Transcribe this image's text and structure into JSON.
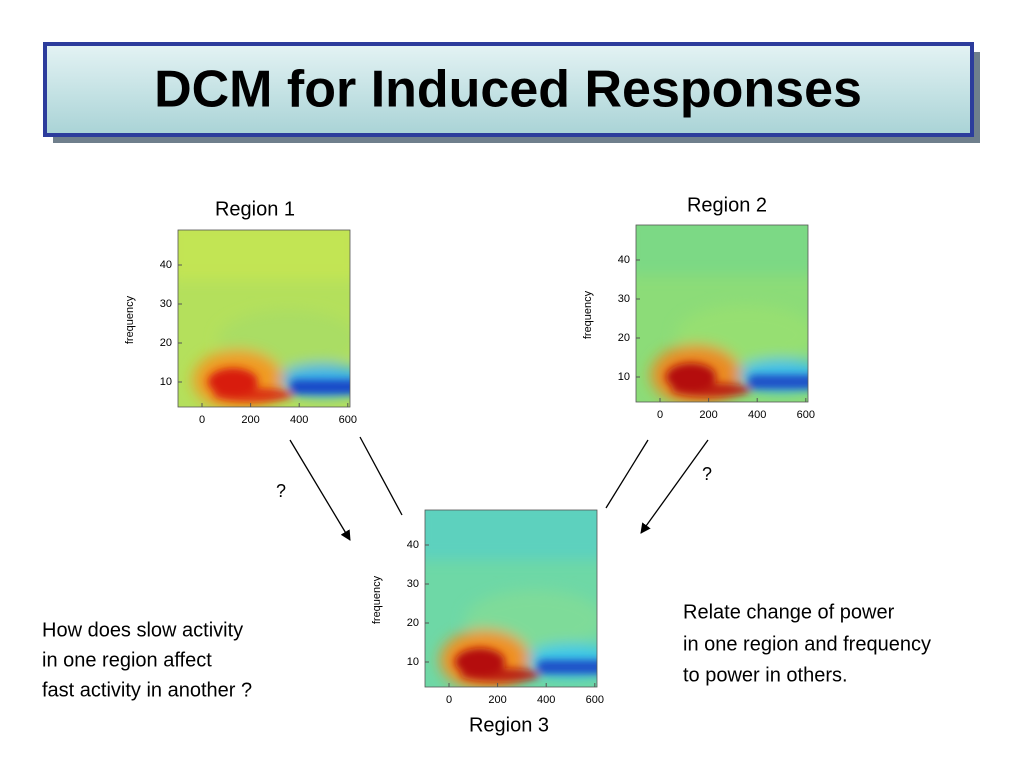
{
  "title": "DCM for Induced Responses",
  "panels": [
    {
      "label": "Region 1",
      "y_label": "frequency",
      "yticks": [
        40,
        30,
        20,
        10
      ],
      "xticks": [
        0,
        200,
        400,
        600
      ]
    },
    {
      "label": "Region 2",
      "y_label": "frequency",
      "yticks": [
        40,
        30,
        20,
        10
      ],
      "xticks": [
        0,
        200,
        400,
        600
      ]
    },
    {
      "label": "Region 3",
      "y_label": "frequency",
      "yticks": [
        40,
        30,
        20,
        10
      ],
      "xticks": [
        0,
        200,
        400,
        600
      ]
    }
  ],
  "arrows": [
    {
      "label": "?"
    },
    {
      "label": "?"
    }
  ],
  "notes": {
    "left": [
      "How does slow activity",
      "in one region affect",
      "fast activity in another ?"
    ],
    "right": [
      "Relate change of power",
      "in one region and frequency",
      "to power in others."
    ]
  }
}
